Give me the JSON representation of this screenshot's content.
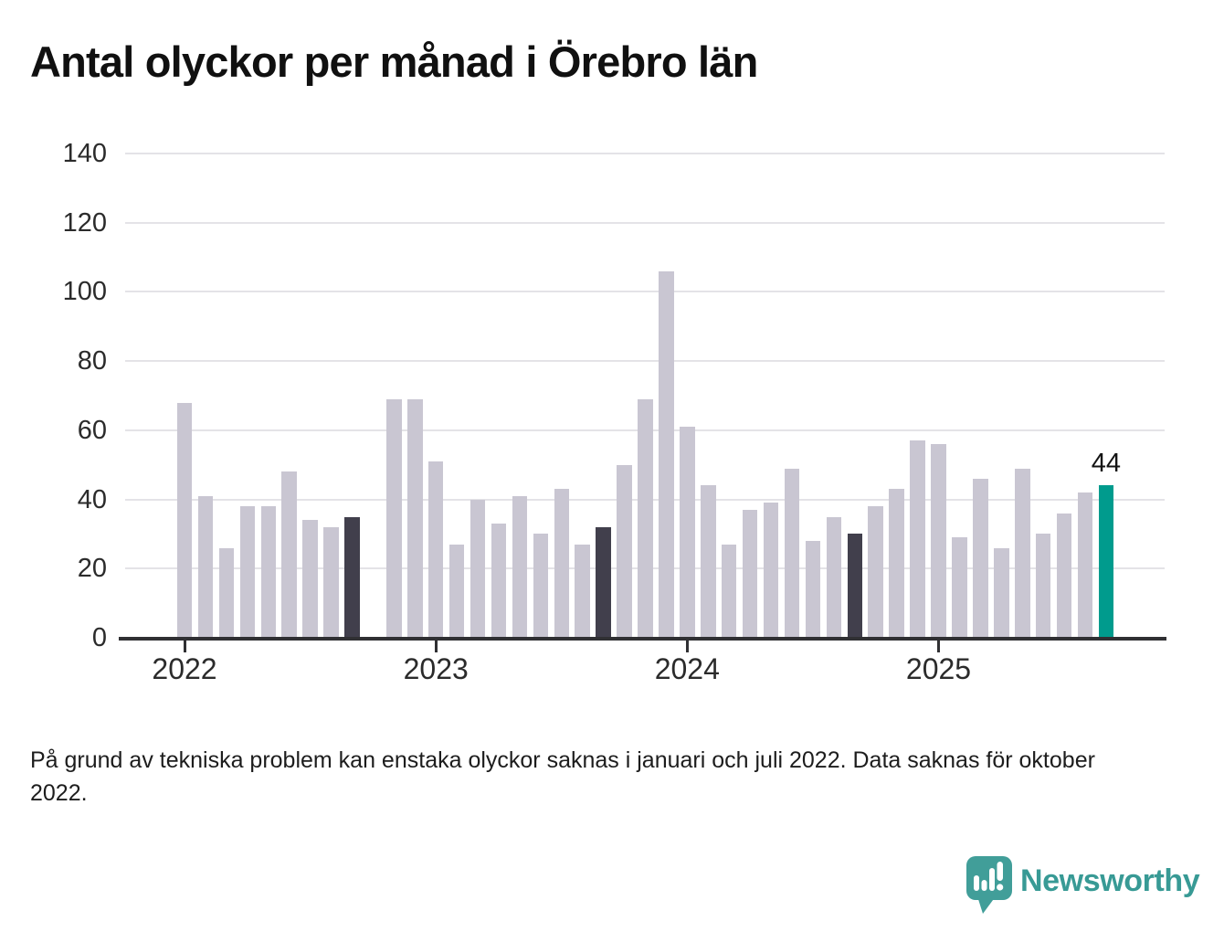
{
  "title": "Antal olyckor per månad i Örebro län",
  "footnote": "På grund av tekniska problem kan enstaka olyckor saknas i januari och juli 2022. Data saknas för oktober 2022.",
  "brand": {
    "name": "Newsworthy",
    "icon": "newsworthy-speech-bubble-bar-chart-icon",
    "icon_color": "#419e99",
    "text_color": "#389a95"
  },
  "colors": {
    "bar_default": "#c9c6d2",
    "bar_reference": "#413f4c",
    "bar_highlight": "#009b8d",
    "gridline": "#e4e3e7",
    "axis_line": "#303033",
    "axis_text": "#2b2b2b",
    "text_primary": "#141414"
  },
  "chart_data": {
    "type": "bar",
    "title": "Antal olyckor per månad i Örebro län",
    "xlabel": "",
    "ylabel": "",
    "ylim": [
      0,
      140
    ],
    "yticks": [
      0,
      20,
      40,
      60,
      80,
      100,
      120,
      140
    ],
    "grid": true,
    "legend": null,
    "x_unit": "månad",
    "year_ticks": [
      {
        "label": "2022",
        "index": 0
      },
      {
        "label": "2023",
        "index": 12
      },
      {
        "label": "2024",
        "index": 24
      },
      {
        "label": "2025",
        "index": 36
      }
    ],
    "annotation": {
      "index": 44,
      "value": 44,
      "text": "44"
    },
    "missing_data_note": "okt 2022 saknas",
    "points": [
      {
        "month": "jan 2022",
        "value": 68,
        "role": "default"
      },
      {
        "month": "feb 2022",
        "value": 41,
        "role": "default"
      },
      {
        "month": "mar 2022",
        "value": 26,
        "role": "default"
      },
      {
        "month": "apr 2022",
        "value": 38,
        "role": "default"
      },
      {
        "month": "maj 2022",
        "value": 38,
        "role": "default"
      },
      {
        "month": "jun 2022",
        "value": 48,
        "role": "default"
      },
      {
        "month": "jul 2022",
        "value": 34,
        "role": "default"
      },
      {
        "month": "aug 2022",
        "value": 32,
        "role": "default"
      },
      {
        "month": "sep 2022",
        "value": 35,
        "role": "reference"
      },
      {
        "month": "okt 2022",
        "value": null,
        "role": "missing"
      },
      {
        "month": "nov 2022",
        "value": 69,
        "role": "default"
      },
      {
        "month": "dec 2022",
        "value": 69,
        "role": "default"
      },
      {
        "month": "jan 2023",
        "value": 51,
        "role": "default"
      },
      {
        "month": "feb 2023",
        "value": 27,
        "role": "default"
      },
      {
        "month": "mar 2023",
        "value": 40,
        "role": "default"
      },
      {
        "month": "apr 2023",
        "value": 33,
        "role": "default"
      },
      {
        "month": "maj 2023",
        "value": 41,
        "role": "default"
      },
      {
        "month": "jun 2023",
        "value": 30,
        "role": "default"
      },
      {
        "month": "jul 2023",
        "value": 43,
        "role": "default"
      },
      {
        "month": "aug 2023",
        "value": 27,
        "role": "default"
      },
      {
        "month": "sep 2023",
        "value": 32,
        "role": "reference"
      },
      {
        "month": "okt 2023",
        "value": 50,
        "role": "default"
      },
      {
        "month": "nov 2023",
        "value": 69,
        "role": "default"
      },
      {
        "month": "dec 2023",
        "value": 106,
        "role": "default"
      },
      {
        "month": "jan 2024",
        "value": 61,
        "role": "default"
      },
      {
        "month": "feb 2024",
        "value": 44,
        "role": "default"
      },
      {
        "month": "mar 2024",
        "value": 27,
        "role": "default"
      },
      {
        "month": "apr 2024",
        "value": 37,
        "role": "default"
      },
      {
        "month": "maj 2024",
        "value": 39,
        "role": "default"
      },
      {
        "month": "jun 2024",
        "value": 49,
        "role": "default"
      },
      {
        "month": "jul 2024",
        "value": 28,
        "role": "default"
      },
      {
        "month": "aug 2024",
        "value": 35,
        "role": "default"
      },
      {
        "month": "sep 2024",
        "value": 30,
        "role": "reference"
      },
      {
        "month": "okt 2024",
        "value": 38,
        "role": "default"
      },
      {
        "month": "nov 2024",
        "value": 43,
        "role": "default"
      },
      {
        "month": "dec 2024",
        "value": 57,
        "role": "default"
      },
      {
        "month": "jan 2025",
        "value": 56,
        "role": "default"
      },
      {
        "month": "feb 2025",
        "value": 29,
        "role": "default"
      },
      {
        "month": "mar 2025",
        "value": 46,
        "role": "default"
      },
      {
        "month": "apr 2025",
        "value": 26,
        "role": "default"
      },
      {
        "month": "maj 2025",
        "value": 49,
        "role": "default"
      },
      {
        "month": "jun 2025",
        "value": 30,
        "role": "default"
      },
      {
        "month": "jul 2025",
        "value": 36,
        "role": "default"
      },
      {
        "month": "aug 2025",
        "value": 42,
        "role": "default"
      },
      {
        "month": "sep 2025",
        "value": 44,
        "role": "highlight"
      }
    ]
  }
}
